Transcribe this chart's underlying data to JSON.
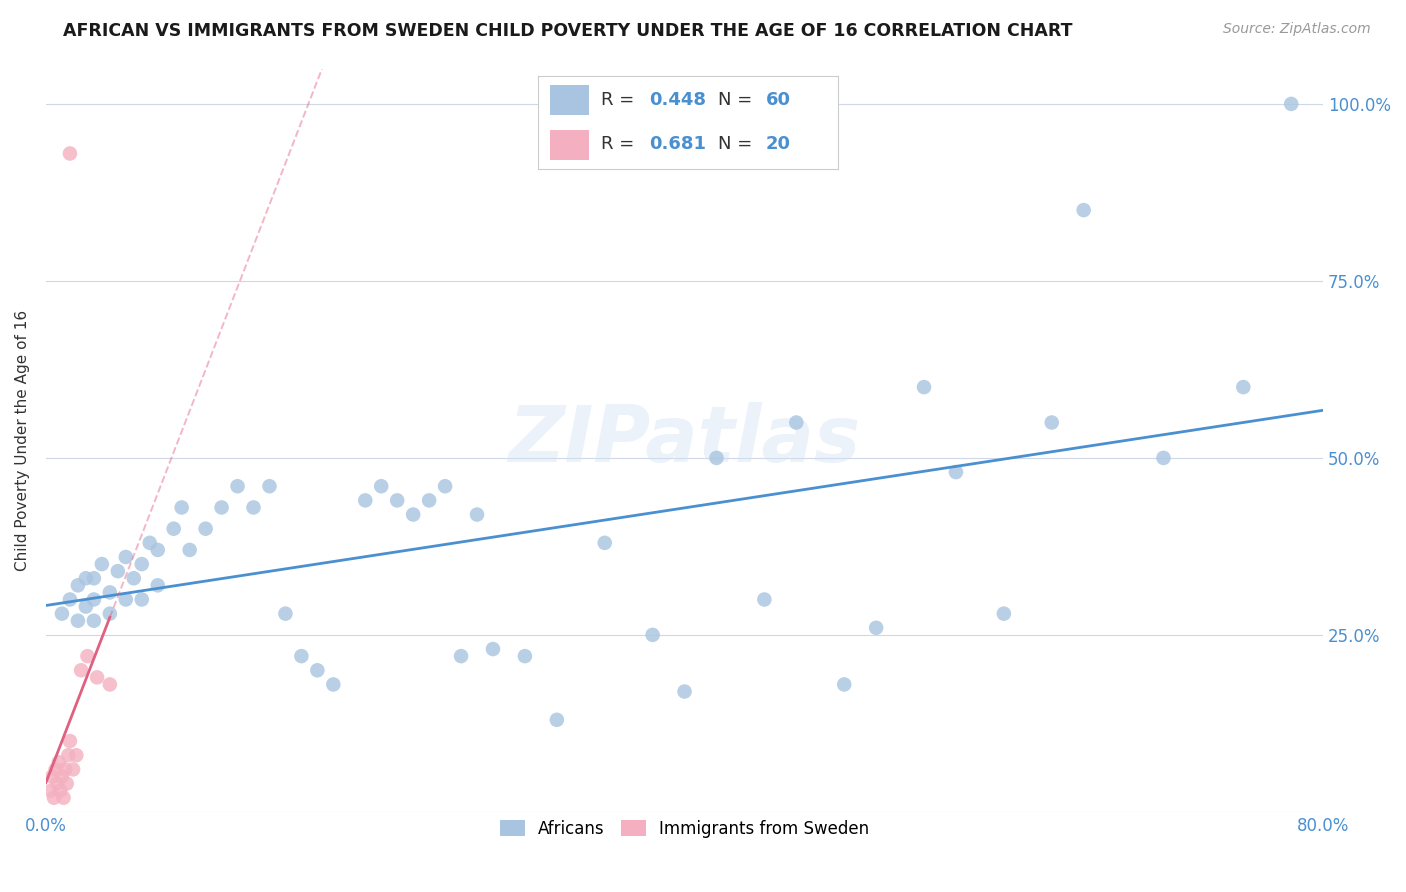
{
  "title": "AFRICAN VS IMMIGRANTS FROM SWEDEN CHILD POVERTY UNDER THE AGE OF 16 CORRELATION CHART",
  "source": "Source: ZipAtlas.com",
  "ylabel": "Child Poverty Under the Age of 16",
  "xlim": [
    0.0,
    0.8
  ],
  "ylim": [
    0.0,
    1.05
  ],
  "xtick_pos": [
    0.0,
    0.1,
    0.2,
    0.3,
    0.4,
    0.5,
    0.6,
    0.7,
    0.8
  ],
  "xticklabels": [
    "0.0%",
    "",
    "",
    "",
    "",
    "",
    "",
    "",
    "80.0%"
  ],
  "ytick_pos": [
    0.0,
    0.25,
    0.5,
    0.75,
    1.0
  ],
  "yticklabels": [
    "",
    "25.0%",
    "50.0%",
    "75.0%",
    "100.0%"
  ],
  "africans_R": 0.448,
  "africans_N": 60,
  "immigrants_R": 0.681,
  "immigrants_N": 20,
  "africans_color": "#a8c4e0",
  "immigrants_color": "#f4b0c0",
  "africans_line_color": "#4a90d0",
  "immigrants_line_color": "#e06080",
  "tick_label_color": "#4a90d0",
  "watermark": "ZIPatlas",
  "legend_R_label": "R = ",
  "legend_N_label": "N = ",
  "legend_text_color": "#4a90d0",
  "legend_africans_label": "Africans",
  "legend_immigrants_label": "Immigrants from Sweden",
  "africans_x": [
    0.01,
    0.015,
    0.02,
    0.02,
    0.025,
    0.025,
    0.03,
    0.03,
    0.03,
    0.035,
    0.04,
    0.04,
    0.045,
    0.05,
    0.05,
    0.055,
    0.06,
    0.06,
    0.065,
    0.07,
    0.07,
    0.08,
    0.085,
    0.09,
    0.1,
    0.11,
    0.12,
    0.13,
    0.14,
    0.15,
    0.16,
    0.17,
    0.18,
    0.2,
    0.21,
    0.22,
    0.23,
    0.24,
    0.25,
    0.26,
    0.27,
    0.28,
    0.3,
    0.32,
    0.35,
    0.38,
    0.4,
    0.42,
    0.45,
    0.47,
    0.5,
    0.52,
    0.55,
    0.57,
    0.6,
    0.63,
    0.65,
    0.7,
    0.75,
    0.78
  ],
  "africans_y": [
    0.28,
    0.3,
    0.27,
    0.32,
    0.29,
    0.33,
    0.27,
    0.3,
    0.33,
    0.35,
    0.28,
    0.31,
    0.34,
    0.3,
    0.36,
    0.33,
    0.3,
    0.35,
    0.38,
    0.32,
    0.37,
    0.4,
    0.43,
    0.37,
    0.4,
    0.43,
    0.46,
    0.43,
    0.46,
    0.28,
    0.22,
    0.2,
    0.18,
    0.44,
    0.46,
    0.44,
    0.42,
    0.44,
    0.46,
    0.22,
    0.42,
    0.23,
    0.22,
    0.13,
    0.38,
    0.25,
    0.17,
    0.5,
    0.3,
    0.55,
    0.18,
    0.26,
    0.6,
    0.48,
    0.28,
    0.55,
    0.85,
    0.5,
    0.6,
    1.0
  ],
  "immigrants_x": [
    0.003,
    0.004,
    0.005,
    0.006,
    0.007,
    0.008,
    0.009,
    0.01,
    0.011,
    0.012,
    0.013,
    0.014,
    0.015,
    0.017,
    0.019,
    0.022,
    0.026,
    0.032,
    0.04,
    0.015
  ],
  "immigrants_y": [
    0.03,
    0.05,
    0.02,
    0.06,
    0.04,
    0.07,
    0.03,
    0.05,
    0.02,
    0.06,
    0.04,
    0.08,
    0.1,
    0.06,
    0.08,
    0.2,
    0.22,
    0.19,
    0.18,
    0.93
  ]
}
